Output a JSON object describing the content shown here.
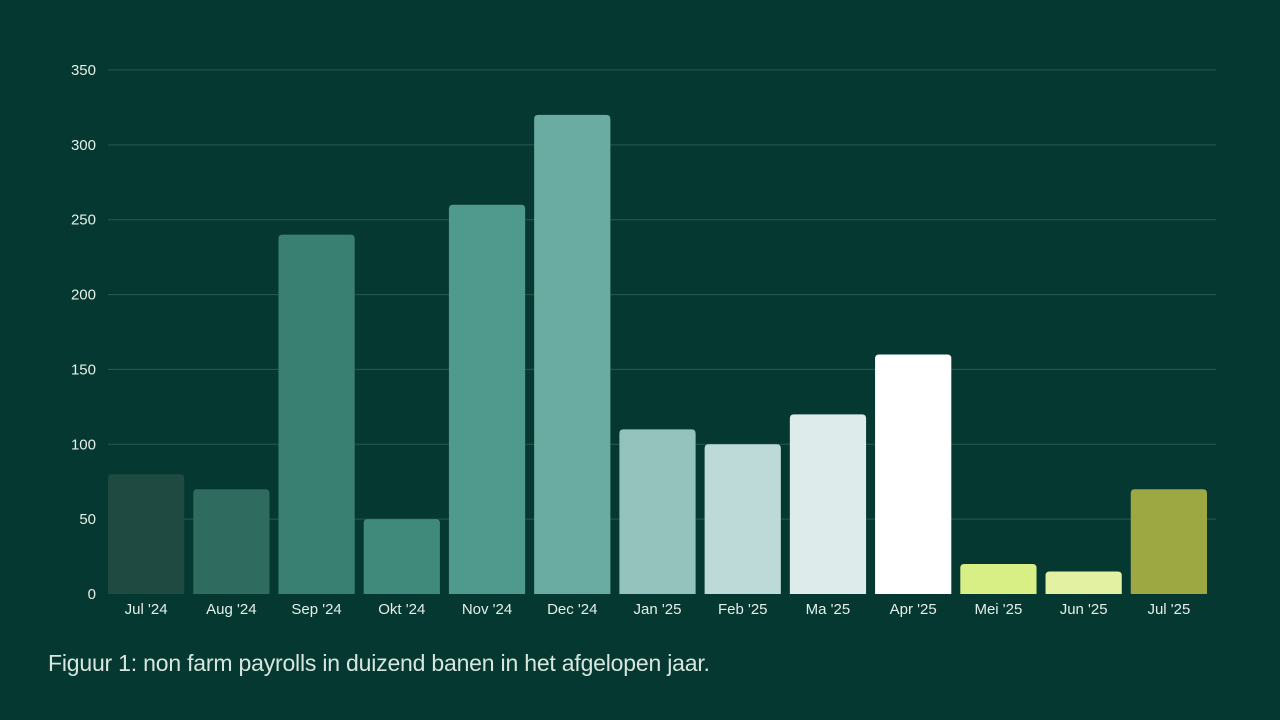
{
  "chart_data": {
    "type": "bar",
    "categories": [
      "Jul '24",
      "Aug '24",
      "Sep '24",
      "Okt '24",
      "Nov '24",
      "Dec '24",
      "Jan '25",
      "Feb '25",
      "Ma '25",
      "Apr '25",
      "Mei '25",
      "Jun '25",
      "Jul '25"
    ],
    "values": [
      80,
      70,
      240,
      50,
      260,
      320,
      110,
      100,
      120,
      160,
      20,
      15,
      70
    ],
    "bar_colors": [
      "#1f4a42",
      "#2f6b5f",
      "#397f72",
      "#408a7c",
      "#509a8d",
      "#6aaca1",
      "#94c2bc",
      "#bdd9d8",
      "#ddeceb",
      "#ffffff",
      "#d8ef86",
      "#e3f2a2",
      "#9da843"
    ],
    "ylim": [
      0,
      350
    ],
    "yticks": [
      0,
      50,
      100,
      150,
      200,
      250,
      300,
      350
    ],
    "grid": true,
    "xlabel": "",
    "ylabel": "",
    "caption": "Figuur 1: non farm payrolls in duizend banen in het afgelopen jaar."
  },
  "colors": {
    "background": "#053830",
    "gridline": "#245a4f",
    "text": "#e4efe9"
  }
}
